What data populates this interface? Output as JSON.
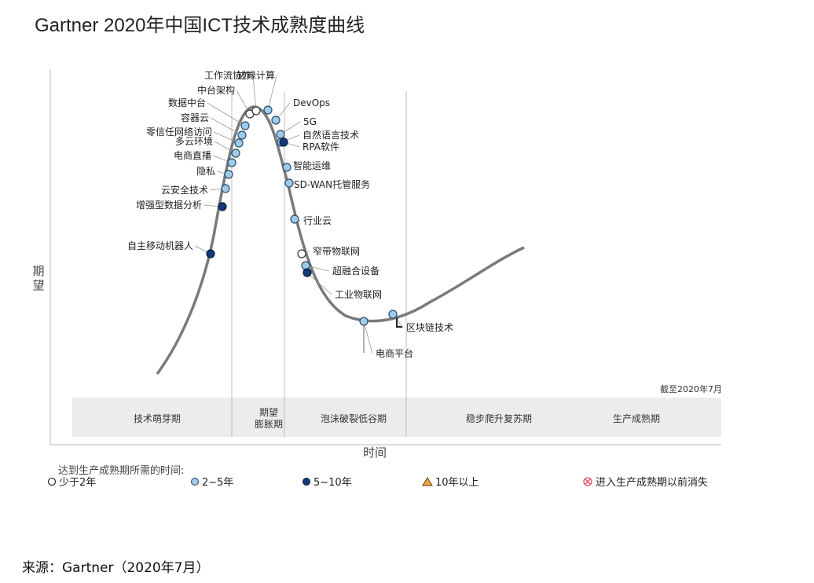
{
  "title": "Gartner 2020年中国ICT技术成熟度曲线",
  "source": "来源：Gartner（2020年7月）",
  "chart_data": {
    "type": "hype-cycle",
    "title": "Gartner 2020年中国ICT技术成熟度曲线",
    "xlabel": "时间",
    "ylabel": "期望",
    "as_of": "截至2020年7月",
    "phases": [
      "技术萌芽期",
      "期望膨胀期",
      "泡沫破裂低谷期",
      "稳步爬升复苏期",
      "生产成熟期"
    ],
    "phase_labels": [
      "技术萌芽期",
      "期望\n膨胀期",
      "泡沫破裂低谷期",
      "稳步爬升复苏期",
      "生产成熟期"
    ],
    "legend_title": "达到生产成熟期所需的时间:",
    "legend": [
      {
        "key": "lt2",
        "label": "少于2年",
        "shape": "circle",
        "color": "#ffffff"
      },
      {
        "key": "2to5",
        "label": "2~5年",
        "shape": "circle",
        "color": "#9fcbea"
      },
      {
        "key": "5to10",
        "label": "5~10年",
        "shape": "circle",
        "color": "#123a78"
      },
      {
        "key": "gt10",
        "label": "10年以上",
        "shape": "triangle",
        "color": "#f0a040"
      },
      {
        "key": "obsolete",
        "label": "进入生产成熟期以前消失",
        "shape": "crossed-circle",
        "color": "#e05060"
      }
    ],
    "technologies": [
      {
        "name": "自主移动机器人",
        "phase": "技术萌芽期",
        "time": "5to10"
      },
      {
        "name": "增强型数据分析",
        "phase": "技术萌芽期",
        "time": "5to10"
      },
      {
        "name": "云安全技术",
        "phase": "技术萌芽期",
        "time": "2to5"
      },
      {
        "name": "隐私",
        "phase": "技术萌芽期",
        "time": "2to5"
      },
      {
        "name": "电商直播",
        "phase": "技术萌芽期",
        "time": "2to5"
      },
      {
        "name": "多云环境",
        "phase": "技术萌芽期",
        "time": "2to5"
      },
      {
        "name": "零信任网络访问",
        "phase": "技术萌芽期",
        "time": "2to5"
      },
      {
        "name": "容器云",
        "phase": "技术萌芽期",
        "time": "2to5"
      },
      {
        "name": "数据中台",
        "phase": "技术萌芽期",
        "time": "2to5"
      },
      {
        "name": "中台架构",
        "phase": "期望膨胀期",
        "time": "lt2"
      },
      {
        "name": "工作流协作",
        "phase": "期望膨胀期",
        "time": "lt2"
      },
      {
        "name": "边缘计算",
        "phase": "期望膨胀期",
        "time": "2to5"
      },
      {
        "name": "DevOps",
        "phase": "期望膨胀期",
        "time": "2to5"
      },
      {
        "name": "5G",
        "phase": "泡沫破裂低谷期",
        "time": "2to5"
      },
      {
        "name": "自然语言技术",
        "phase": "泡沫破裂低谷期",
        "time": "2to5"
      },
      {
        "name": "RPA软件",
        "phase": "泡沫破裂低谷期",
        "time": "5to10"
      },
      {
        "name": "智能运维",
        "phase": "泡沫破裂低谷期",
        "time": "2to5"
      },
      {
        "name": "SD-WAN托管服务",
        "phase": "泡沫破裂低谷期",
        "time": "2to5"
      },
      {
        "name": "行业云",
        "phase": "泡沫破裂低谷期",
        "time": "2to5"
      },
      {
        "name": "窄带物联网",
        "phase": "泡沫破裂低谷期",
        "time": "lt2"
      },
      {
        "name": "超融合设备",
        "phase": "泡沫破裂低谷期",
        "time": "2to5"
      },
      {
        "name": "工业物联网",
        "phase": "泡沫破裂低谷期",
        "time": "5to10"
      },
      {
        "name": "电商平台",
        "phase": "泡沫破裂低谷期",
        "time": "2to5"
      },
      {
        "name": "区块链技术",
        "phase": "泡沫破裂低谷期",
        "time": "2to5"
      }
    ]
  }
}
